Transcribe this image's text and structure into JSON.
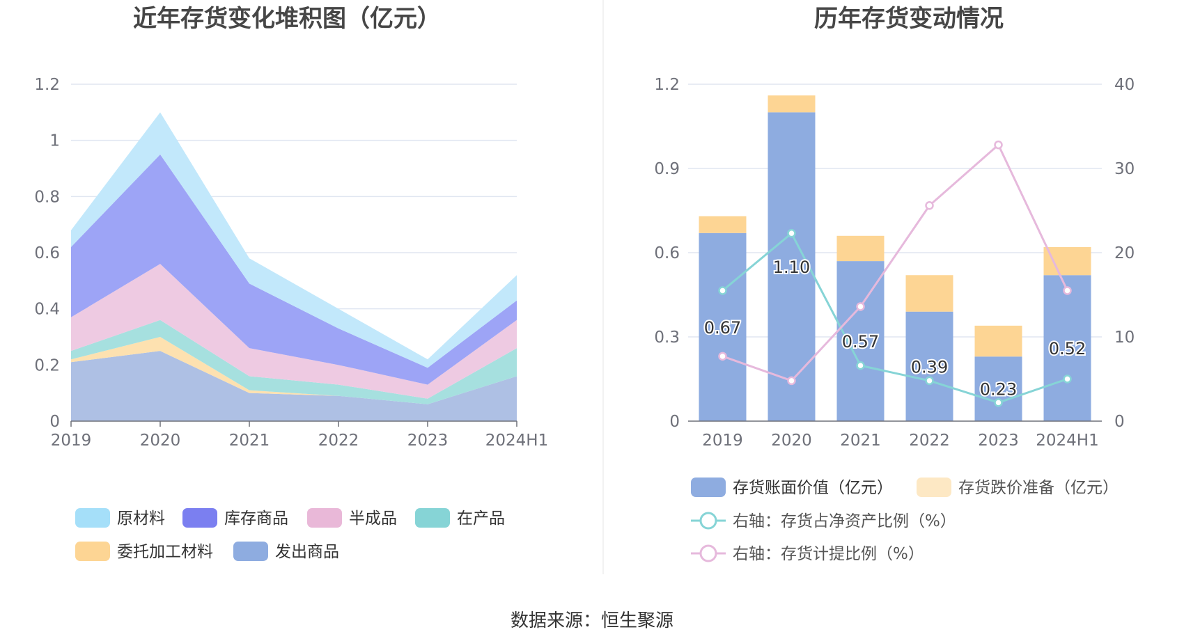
{
  "source_text": "数据来源：恒生聚源",
  "chart_data": [
    {
      "type": "area",
      "stacked": true,
      "title": "近年存货变化堆积图（亿元）",
      "categories": [
        "2019",
        "2020",
        "2021",
        "2022",
        "2023",
        "2024H1"
      ],
      "ylim": [
        0,
        1.2
      ],
      "yticks": [
        "0",
        "0.2",
        "0.4",
        "0.6",
        "0.8",
        "1",
        "1.2"
      ],
      "series": [
        {
          "name": "发出商品",
          "color": "#aec0e4",
          "legend_color": "#8eace0",
          "values": [
            0.21,
            0.25,
            0.1,
            0.09,
            0.06,
            0.16
          ]
        },
        {
          "name": "委托加工材料",
          "color": "#fde1b0",
          "legend_color": "#fdd594",
          "values": [
            0.01,
            0.05,
            0.01,
            0.0,
            0.0,
            0.0
          ]
        },
        {
          "name": "在产品",
          "color": "#a6e0df",
          "legend_color": "#86d4d6",
          "values": [
            0.03,
            0.06,
            0.05,
            0.04,
            0.02,
            0.1
          ]
        },
        {
          "name": "半成品",
          "color": "#eecae2",
          "legend_color": "#e9b8d8",
          "values": [
            0.12,
            0.2,
            0.1,
            0.07,
            0.05,
            0.1
          ]
        },
        {
          "name": "库存商品",
          "color": "#9da4f6",
          "legend_color": "#7b7ff0",
          "values": [
            0.25,
            0.39,
            0.23,
            0.13,
            0.06,
            0.07
          ]
        },
        {
          "name": "原材料",
          "color": "#c2e8fb",
          "legend_color": "#a5dff9",
          "values": [
            0.06,
            0.15,
            0.09,
            0.07,
            0.03,
            0.09
          ]
        }
      ],
      "legend_order": [
        "原材料",
        "库存商品",
        "半成品",
        "在产品",
        "委托加工材料",
        "发出商品"
      ]
    },
    {
      "type": "bar",
      "stacked": true,
      "title": "历年存货变动情况",
      "categories": [
        "2019",
        "2020",
        "2021",
        "2022",
        "2023",
        "2024H1"
      ],
      "ylim": [
        0,
        1.2
      ],
      "yticks": [
        "0",
        "0.3",
        "0.6",
        "0.9",
        "1.2"
      ],
      "y2lim": [
        0,
        40
      ],
      "y2ticks": [
        "0",
        "10",
        "20",
        "30",
        "40"
      ],
      "series": [
        {
          "name": "存货账面价值（亿元）",
          "color": "#8eace0",
          "values": [
            0.67,
            1.1,
            0.57,
            0.39,
            0.23,
            0.52
          ],
          "labels": [
            "0.67",
            "1.10",
            "0.57",
            "0.39",
            "0.23",
            "0.52"
          ]
        },
        {
          "name": "存货跌价准备（亿元）",
          "color": "#fdd594",
          "legend_color": "#fde8c4",
          "values": [
            0.06,
            0.06,
            0.09,
            0.13,
            0.11,
            0.1
          ]
        }
      ],
      "lines": [
        {
          "name": "右轴：存货占净资产比例（%）",
          "color": "#86d4d6",
          "values": [
            15.5,
            22.3,
            6.6,
            4.8,
            2.2,
            5.0
          ]
        },
        {
          "name": "右轴：存货计提比例（%）",
          "color": "#e6b9dc",
          "values": [
            7.7,
            4.8,
            13.6,
            25.6,
            32.8,
            15.5
          ]
        }
      ]
    }
  ]
}
